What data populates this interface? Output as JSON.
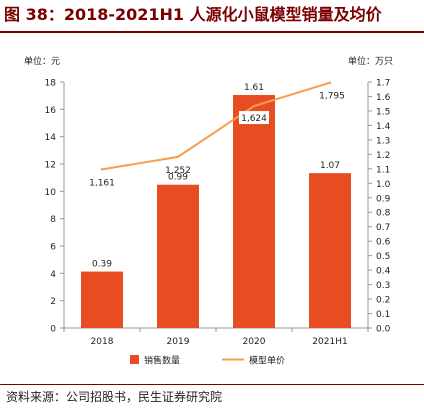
{
  "title": "图 38：2018-2021H1 人源化小鼠模型销量及均价",
  "source": "资料来源：公司招股书，民生证券研究院",
  "chart_data": {
    "type": "bar",
    "categories": [
      "2018",
      "2019",
      "2020",
      "2021H1"
    ],
    "left_unit": "单位：元",
    "right_unit": "单位：万只",
    "left_axis": {
      "min": 0,
      "max": 18,
      "ticks": [
        "0",
        "2",
        "4",
        "6",
        "8",
        "10",
        "12",
        "14",
        "16",
        "18"
      ]
    },
    "right_axis": {
      "min": 0,
      "max": 1.7,
      "ticks": [
        "0.0",
        "0.1",
        "0.2",
        "0.3",
        "0.4",
        "0.5",
        "0.6",
        "0.7",
        "0.8",
        "0.9",
        "1.0",
        "1.1",
        "1.2",
        "1.3",
        "1.4",
        "1.5",
        "1.6",
        "1.7"
      ]
    },
    "series": [
      {
        "name": "销售数量",
        "type": "bar",
        "axis": "right",
        "color": "#e84c23",
        "values": [
          0.39,
          0.99,
          1.61,
          1.07
        ],
        "labels": [
          "0.39",
          "0.99",
          "1.61",
          "1.07"
        ]
      },
      {
        "name": "模型单价",
        "type": "line",
        "axis": "left",
        "color": "#f5a04a",
        "values": [
          1161,
          1252,
          1624,
          1795
        ],
        "labels": [
          "1,161",
          "1,252",
          "1,624",
          "1,795"
        ]
      }
    ],
    "legend": "bottom",
    "grid": false
  }
}
